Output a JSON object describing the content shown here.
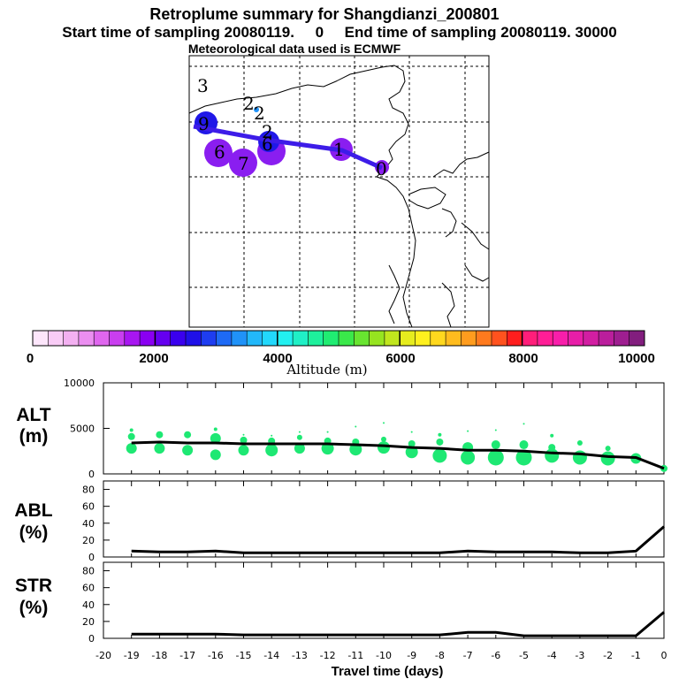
{
  "header": {
    "title": "Retroplume summary for Shangdianzi_200801",
    "subtitle": "Start time of sampling 20080119.     0     End time of sampling 20080119. 30000",
    "met": "Meteorological data used is ECMWF"
  },
  "colorbar": {
    "label": "Altitude (m)",
    "ticks": [
      "0",
      "2000",
      "4000",
      "6000",
      "8000",
      "10000"
    ],
    "colors": [
      "#fde6fb",
      "#f9ccf6",
      "#f3b0f1",
      "#eb8ef0",
      "#df66ee",
      "#c93eef",
      "#a816f1",
      "#8a00f2",
      "#6500f0",
      "#3a00ee",
      "#1f10e8",
      "#1e3df0",
      "#1e6af5",
      "#2092f8",
      "#22b8fa",
      "#22d8fc",
      "#22f0f0",
      "#20f0c6",
      "#1ef09c",
      "#20ec72",
      "#3ae84a",
      "#68e430",
      "#96e420",
      "#c0e61e",
      "#e6ec1e",
      "#fff01e",
      "#ffd81e",
      "#ffbc1e",
      "#ff9c1e",
      "#ff7a1e",
      "#ff521e",
      "#ff1e1e",
      "#ff1e7a",
      "#ff1e96",
      "#f81eaa",
      "#e81ea8",
      "#d21ea2",
      "#ba1e9c",
      "#9e1e90",
      "#821e7e"
    ]
  },
  "map": {
    "day_labels": [
      "3",
      "2",
      "2",
      "2",
      "9",
      "6",
      "6",
      "7",
      "1",
      "0"
    ],
    "colors": {
      "trajectory": "#3d1ce8",
      "plume_purple": "#8a1ef0",
      "plume_blue": "#2018e8"
    }
  },
  "panels": {
    "alt_label": "ALT",
    "alt_unit": "(m)",
    "abl_label": "ABL",
    "abl_unit": "(%)",
    "str_label": "STR",
    "str_unit": "(%)",
    "x_title": "Travel time (days)"
  },
  "chart_data": [
    {
      "type": "line",
      "name": "ALT",
      "title": "",
      "ylabel": "ALT (m)",
      "ylim": [
        0,
        10000
      ],
      "yticks": [
        "0",
        "5000",
        "10000"
      ],
      "x": [
        -19,
        -18,
        -17,
        -16,
        -15,
        -14,
        -13,
        -12,
        -11,
        -10,
        -9,
        -8,
        -7,
        -6,
        -5,
        -4,
        -3,
        -2,
        -1,
        0
      ],
      "series": [
        {
          "name": "mean altitude",
          "values": [
            3400,
            3500,
            3400,
            3400,
            3300,
            3300,
            3300,
            3300,
            3200,
            3100,
            2900,
            2800,
            2600,
            2600,
            2500,
            2300,
            2200,
            1900,
            1800,
            600
          ]
        }
      ],
      "clusters": [
        {
          "x": -19,
          "alt": 2800,
          "r": 6
        },
        {
          "x": -19,
          "alt": 4100,
          "r": 4
        },
        {
          "x": -19,
          "alt": 4800,
          "r": 2
        },
        {
          "x": -18,
          "alt": 2800,
          "r": 6
        },
        {
          "x": -18,
          "alt": 4300,
          "r": 4
        },
        {
          "x": -17,
          "alt": 2600,
          "r": 6
        },
        {
          "x": -17,
          "alt": 4300,
          "r": 4
        },
        {
          "x": -16,
          "alt": 2100,
          "r": 6
        },
        {
          "x": -16,
          "alt": 3900,
          "r": 6
        },
        {
          "x": -16,
          "alt": 4900,
          "r": 2
        },
        {
          "x": -15,
          "alt": 2600,
          "r": 6
        },
        {
          "x": -15,
          "alt": 3700,
          "r": 4
        },
        {
          "x": -15,
          "alt": 4300,
          "r": 1
        },
        {
          "x": -14,
          "alt": 2600,
          "r": 7
        },
        {
          "x": -14,
          "alt": 3600,
          "r": 4
        },
        {
          "x": -14,
          "alt": 4200,
          "r": 1
        },
        {
          "x": -13,
          "alt": 2800,
          "r": 6
        },
        {
          "x": -13,
          "alt": 4000,
          "r": 3
        },
        {
          "x": -13,
          "alt": 4600,
          "r": 1
        },
        {
          "x": -12,
          "alt": 2800,
          "r": 7
        },
        {
          "x": -12,
          "alt": 3600,
          "r": 4
        },
        {
          "x": -12,
          "alt": 4600,
          "r": 1
        },
        {
          "x": -11,
          "alt": 2700,
          "r": 7
        },
        {
          "x": -11,
          "alt": 3500,
          "r": 4
        },
        {
          "x": -11,
          "alt": 5200,
          "r": 1
        },
        {
          "x": -10,
          "alt": 2900,
          "r": 7
        },
        {
          "x": -10,
          "alt": 3800,
          "r": 3
        },
        {
          "x": -10,
          "alt": 5600,
          "r": 1
        },
        {
          "x": -9,
          "alt": 2400,
          "r": 7
        },
        {
          "x": -9,
          "alt": 3300,
          "r": 4
        },
        {
          "x": -9,
          "alt": 4600,
          "r": 1
        },
        {
          "x": -8,
          "alt": 2000,
          "r": 8
        },
        {
          "x": -8,
          "alt": 3500,
          "r": 4
        },
        {
          "x": -8,
          "alt": 4300,
          "r": 2
        },
        {
          "x": -7,
          "alt": 1800,
          "r": 8
        },
        {
          "x": -7,
          "alt": 2900,
          "r": 6
        },
        {
          "x": -7,
          "alt": 4700,
          "r": 1
        },
        {
          "x": -6,
          "alt": 1800,
          "r": 9
        },
        {
          "x": -6,
          "alt": 3200,
          "r": 5
        },
        {
          "x": -6,
          "alt": 4800,
          "r": 1
        },
        {
          "x": -5,
          "alt": 1800,
          "r": 9
        },
        {
          "x": -5,
          "alt": 3200,
          "r": 5
        },
        {
          "x": -5,
          "alt": 5500,
          "r": 1
        },
        {
          "x": -4,
          "alt": 2000,
          "r": 8
        },
        {
          "x": -4,
          "alt": 2900,
          "r": 4
        },
        {
          "x": -4,
          "alt": 4200,
          "r": 2
        },
        {
          "x": -3,
          "alt": 1800,
          "r": 8
        },
        {
          "x": -3,
          "alt": 3400,
          "r": 3
        },
        {
          "x": -2,
          "alt": 1700,
          "r": 8
        },
        {
          "x": -2,
          "alt": 2800,
          "r": 3
        },
        {
          "x": -1,
          "alt": 1700,
          "r": 6
        },
        {
          "x": 0,
          "alt": 600,
          "r": 4
        }
      ]
    },
    {
      "type": "line",
      "name": "ABL",
      "ylabel": "ABL (%)",
      "ylim": [
        0,
        90
      ],
      "yticks": [
        "0",
        "20",
        "40",
        "60",
        "80"
      ],
      "x": [
        -19,
        -18,
        -17,
        -16,
        -15,
        -14,
        -13,
        -12,
        -11,
        -10,
        -9,
        -8,
        -7,
        -6,
        -5,
        -4,
        -3,
        -2,
        -1,
        0
      ],
      "series": [
        {
          "name": "ABL fraction",
          "values": [
            7,
            6,
            6,
            7,
            5,
            5,
            5,
            5,
            5,
            5,
            5,
            5,
            7,
            6,
            6,
            6,
            5,
            5,
            7,
            36
          ]
        }
      ]
    },
    {
      "type": "line",
      "name": "STR",
      "ylabel": "STR (%)",
      "ylim": [
        0,
        90
      ],
      "yticks": [
        "0",
        "20",
        "40",
        "60",
        "80"
      ],
      "x": [
        -19,
        -18,
        -17,
        -16,
        -15,
        -14,
        -13,
        -12,
        -11,
        -10,
        -9,
        -8,
        -7,
        -6,
        -5,
        -4,
        -3,
        -2,
        -1,
        0
      ],
      "series": [
        {
          "name": "stratospheric fraction",
          "values": [
            5,
            5,
            5,
            5,
            4,
            4,
            4,
            4,
            4,
            4,
            4,
            4,
            7,
            7,
            3,
            3,
            3,
            3,
            3,
            31
          ]
        }
      ]
    }
  ],
  "x_axis": {
    "ticks": [
      "-20",
      "-19",
      "-18",
      "-17",
      "-16",
      "-15",
      "-14",
      "-13",
      "-12",
      "-11",
      "-10",
      "-9",
      "-8",
      "-7",
      "-6",
      "-5",
      "-4",
      "-3",
      "-2",
      "-1",
      "0"
    ]
  }
}
